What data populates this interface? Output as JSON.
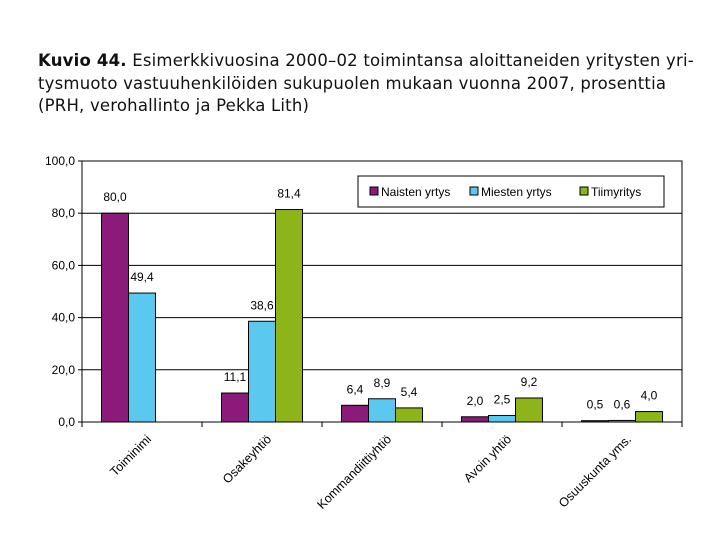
{
  "heading": {
    "number": "Kuvio 44.",
    "text": "Esimerkkivuosina 2000–02 toimintansa aloittaneiden yritysten yri-tysmuoto vastuuhenkilöiden sukupuolen mukaan vuonna 2007, prosenttia (PRH, verohallinto ja Pekka Lith)"
  },
  "chart_data": {
    "type": "bar",
    "title": "Esimerkkivuosina 2000–02 toimintansa aloittaneiden yritysten yritysmuoto vastuuhenkilöiden sukupuolen mukaan vuonna 2007, prosenttia",
    "xlabel": "",
    "ylabel": "",
    "ylim": [
      0,
      100
    ],
    "yticks": [
      "0,0",
      "20,0",
      "40,0",
      "60,0",
      "80,0",
      "100,0"
    ],
    "categories": [
      "Toiminimi",
      "Osakeyhtiö",
      "Kommandiittiyhtiö",
      "Avoin yhtiö",
      "Osuuskunta yms."
    ],
    "series": [
      {
        "name": "Naisten yrtys",
        "color": "#8B1A7A",
        "values": [
          80.0,
          11.1,
          6.4,
          2.0,
          0.5
        ],
        "labels": [
          "80,0",
          "11,1",
          "6,4",
          "2,0",
          "0,5"
        ]
      },
      {
        "name": "Miesten yrtys",
        "color": "#5BC8F0",
        "values": [
          49.4,
          38.6,
          8.9,
          2.5,
          0.6
        ],
        "labels": [
          "49,4",
          "38,6",
          "8,9",
          "2,5",
          "0,6"
        ]
      },
      {
        "name": "Tiimyritys",
        "color": "#8DB51A",
        "values": [
          null,
          81.4,
          5.4,
          9.2,
          4.0
        ],
        "labels": [
          "",
          "81,4",
          "5,4",
          "9,2",
          "4,0"
        ]
      }
    ],
    "legend": "top-right",
    "grid": true
  }
}
